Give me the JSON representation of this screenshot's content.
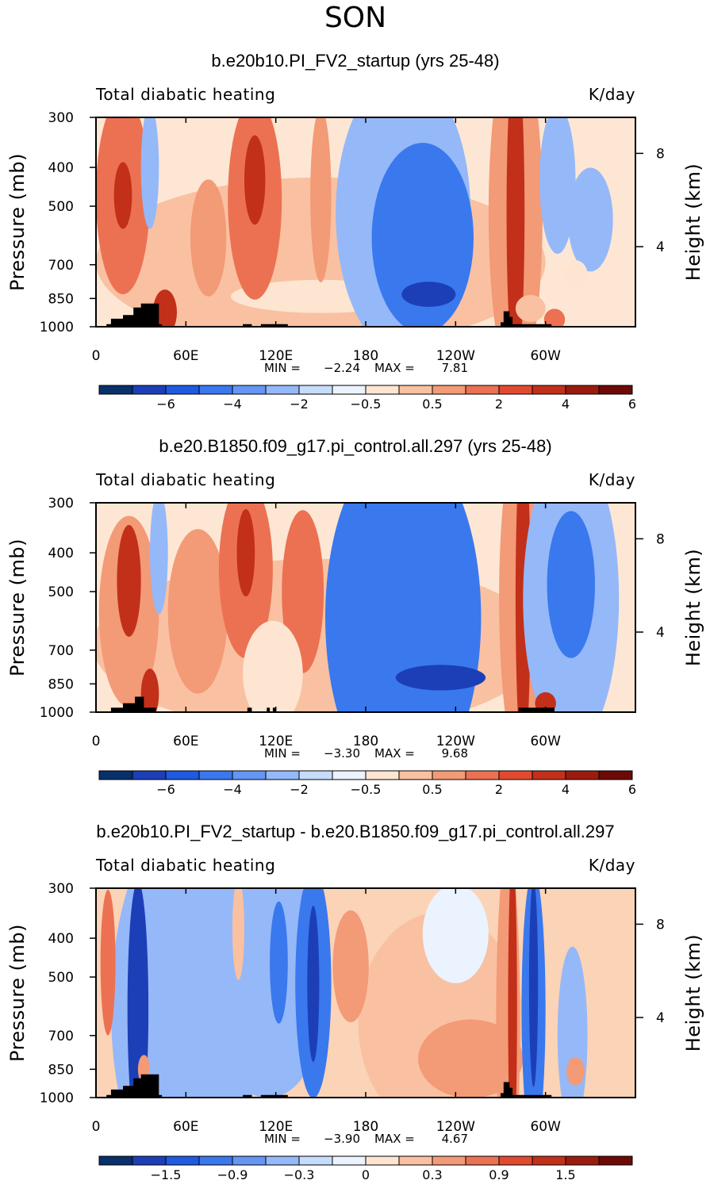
{
  "figure": {
    "season_title": "SON"
  },
  "chart_data": [
    {
      "type": "heatmap",
      "title": "b.e20b10.PI_FV2_startup (yrs 25-48)",
      "variable": "Total diabatic heating",
      "units": "K/day",
      "ylabel": "Pressure (mb)",
      "ylabel_right": "Height (km)",
      "xlabel": "",
      "x_ticks": [
        "0",
        "60E",
        "120E",
        "180",
        "120W",
        "60W"
      ],
      "y_ticks": [
        "300",
        "400",
        "500",
        "700",
        "850",
        "1000"
      ],
      "height_ticks": [
        "8",
        "4"
      ],
      "min_label": "MIN =",
      "min_value": "−2.24",
      "max_label": "MAX =",
      "max_value": "7.81",
      "colorbar_labels": [
        "−6",
        "−4",
        "−2",
        "−0.5",
        "0.5",
        "2",
        "4",
        "6"
      ],
      "colorbar_colors": [
        "#08306b",
        "#1c3fb8",
        "#1e5be0",
        "#3a78ee",
        "#6496f4",
        "#95b8f8",
        "#c6dcfc",
        "#eaf3fe",
        "#fde5d2",
        "#f9c1a1",
        "#f39a77",
        "#ec7152",
        "#e24a30",
        "#c2301a",
        "#9b1c0f",
        "#6e0a06"
      ],
      "bg": "#fde7d4",
      "blobs": [
        {
          "lon": 150,
          "p": 690,
          "rx": 150,
          "ry": 330,
          "v": 2
        },
        {
          "lon": 150,
          "p": 840,
          "rx": 60,
          "ry": 80,
          "v": 1
        },
        {
          "lon": 18,
          "p": 470,
          "rx": 18,
          "ry": 260,
          "v": 4
        },
        {
          "lon": 18,
          "p": 470,
          "rx": 6,
          "ry": 90,
          "v": 5
        },
        {
          "lon": 36,
          "p": 400,
          "rx": 6,
          "ry": 140,
          "v": -1
        },
        {
          "lon": 46,
          "p": 920,
          "rx": 8,
          "ry": 120,
          "v": 5
        },
        {
          "lon": 75,
          "p": 600,
          "rx": 12,
          "ry": 200,
          "v": 3
        },
        {
          "lon": 106,
          "p": 480,
          "rx": 18,
          "ry": 270,
          "v": 4
        },
        {
          "lon": 106,
          "p": 430,
          "rx": 7,
          "ry": 110,
          "v": 5
        },
        {
          "lon": 150,
          "p": 470,
          "rx": 7,
          "ry": 230,
          "v": 3
        },
        {
          "lon": 205,
          "p": 520,
          "rx": 45,
          "ry": 400,
          "v": -1
        },
        {
          "lon": 218,
          "p": 600,
          "rx": 34,
          "ry": 320,
          "v": -2
        },
        {
          "lon": 222,
          "p": 830,
          "rx": 18,
          "ry": 60,
          "v": -3
        },
        {
          "lon": 280,
          "p": 520,
          "rx": 18,
          "ry": 580,
          "v": 3
        },
        {
          "lon": 280,
          "p": 520,
          "rx": 6,
          "ry": 470,
          "v": 5
        },
        {
          "lon": 290,
          "p": 900,
          "rx": 10,
          "ry": 70,
          "v": 2
        },
        {
          "lon": 308,
          "p": 430,
          "rx": 12,
          "ry": 180,
          "v": -1
        },
        {
          "lon": 330,
          "p": 540,
          "rx": 15,
          "ry": 160,
          "v": -1
        },
        {
          "lon": 320,
          "p": 740,
          "rx": 8,
          "ry": 60,
          "v": 1
        },
        {
          "lon": 306,
          "p": 960,
          "rx": 7,
          "ry": 60,
          "v": 4
        }
      ],
      "topography": [
        [
          7,
          1000
        ],
        [
          7,
          985
        ],
        [
          10,
          985
        ],
        [
          10,
          955
        ],
        [
          18,
          955
        ],
        [
          18,
          935
        ],
        [
          25,
          935
        ],
        [
          25,
          895
        ],
        [
          30,
          895
        ],
        [
          30,
          875
        ],
        [
          42,
          875
        ],
        [
          42,
          985
        ],
        [
          44,
          985
        ],
        [
          44,
          1000
        ],
        [
          98,
          1000
        ],
        [
          98,
          985
        ],
        [
          104,
          985
        ],
        [
          104,
          1000
        ],
        [
          110,
          1000
        ],
        [
          110,
          985
        ],
        [
          128,
          985
        ],
        [
          128,
          1000
        ],
        [
          270,
          1000
        ],
        [
          270,
          975
        ],
        [
          272,
          975
        ],
        [
          272,
          915
        ],
        [
          276,
          915
        ],
        [
          276,
          945
        ],
        [
          278,
          945
        ],
        [
          278,
          985
        ],
        [
          304,
          985
        ],
        [
          304,
          1000
        ]
      ]
    },
    {
      "type": "heatmap",
      "title": "b.e20.B1850.f09_g17.pi_control.all.297 (yrs 25-48)",
      "variable": "Total diabatic heating",
      "units": "K/day",
      "ylabel": "Pressure (mb)",
      "ylabel_right": "Height (km)",
      "xlabel": "",
      "x_ticks": [
        "0",
        "60E",
        "120E",
        "180",
        "120W",
        "60W"
      ],
      "y_ticks": [
        "300",
        "400",
        "500",
        "700",
        "850",
        "1000"
      ],
      "height_ticks": [
        "8",
        "4"
      ],
      "min_label": "MIN =",
      "min_value": "−3.30",
      "max_label": "MAX =",
      "max_value": "9.68",
      "colorbar_labels": [
        "−6",
        "−4",
        "−2",
        "−0.5",
        "0.5",
        "2",
        "4",
        "6"
      ],
      "colorbar_colors": [
        "#08306b",
        "#1c3fb8",
        "#1e5be0",
        "#3a78ee",
        "#6496f4",
        "#95b8f8",
        "#c6dcfc",
        "#eaf3fe",
        "#fde5d2",
        "#f9c1a1",
        "#f39a77",
        "#ec7152",
        "#e24a30",
        "#c2301a",
        "#9b1c0f",
        "#6e0a06"
      ],
      "bg": "#fde7d4",
      "blobs": [
        {
          "lon": 148,
          "p": 680,
          "rx": 150,
          "ry": 330,
          "v": 2
        },
        {
          "lon": 22,
          "p": 560,
          "rx": 20,
          "ry": 300,
          "v": 3
        },
        {
          "lon": 22,
          "p": 470,
          "rx": 8,
          "ry": 150,
          "v": 5
        },
        {
          "lon": 42,
          "p": 400,
          "rx": 6,
          "ry": 140,
          "v": -1
        },
        {
          "lon": 36,
          "p": 900,
          "rx": 6,
          "ry": 130,
          "v": 5
        },
        {
          "lon": 68,
          "p": 560,
          "rx": 20,
          "ry": 260,
          "v": 3
        },
        {
          "lon": 100,
          "p": 440,
          "rx": 18,
          "ry": 220,
          "v": 4
        },
        {
          "lon": 100,
          "p": 400,
          "rx": 6,
          "ry": 100,
          "v": 5
        },
        {
          "lon": 138,
          "p": 500,
          "rx": 14,
          "ry": 230,
          "v": 4
        },
        {
          "lon": 118,
          "p": 800,
          "rx": 20,
          "ry": 240,
          "v": 1
        },
        {
          "lon": 205,
          "p": 580,
          "rx": 52,
          "ry": 540,
          "v": -2
        },
        {
          "lon": 230,
          "p": 820,
          "rx": 30,
          "ry": 60,
          "v": -3
        },
        {
          "lon": 285,
          "p": 520,
          "rx": 16,
          "ry": 580,
          "v": 3
        },
        {
          "lon": 285,
          "p": 520,
          "rx": 5,
          "ry": 470,
          "v": 5
        },
        {
          "lon": 317,
          "p": 520,
          "rx": 32,
          "ry": 420,
          "v": -1
        },
        {
          "lon": 317,
          "p": 480,
          "rx": 16,
          "ry": 200,
          "v": -2
        },
        {
          "lon": 300,
          "p": 950,
          "rx": 7,
          "ry": 60,
          "v": 5
        }
      ],
      "topography": [
        [
          10,
          1000
        ],
        [
          10,
          975
        ],
        [
          18,
          975
        ],
        [
          18,
          950
        ],
        [
          26,
          950
        ],
        [
          26,
          915
        ],
        [
          32,
          915
        ],
        [
          32,
          975
        ],
        [
          40,
          975
        ],
        [
          40,
          1000
        ],
        [
          101,
          1000
        ],
        [
          101,
          975
        ],
        [
          104,
          975
        ],
        [
          104,
          1000
        ],
        [
          114,
          1000
        ],
        [
          114,
          975
        ],
        [
          116,
          975
        ],
        [
          116,
          1000
        ],
        [
          118,
          1000
        ],
        [
          118,
          975
        ],
        [
          120,
          975
        ],
        [
          120,
          1000
        ],
        [
          282,
          1000
        ],
        [
          282,
          975
        ],
        [
          306,
          975
        ],
        [
          306,
          1000
        ]
      ]
    },
    {
      "type": "heatmap",
      "title": "b.e20b10.PI_FV2_startup - b.e20.B1850.f09_g17.pi_control.all.297",
      "variable": "Total diabatic heating",
      "units": "K/day",
      "ylabel": "Pressure (mb)",
      "ylabel_right": "Height (km)",
      "xlabel": "",
      "x_ticks": [
        "0",
        "60E",
        "120E",
        "180",
        "120W",
        "60W"
      ],
      "y_ticks": [
        "300",
        "400",
        "500",
        "700",
        "850",
        "1000"
      ],
      "height_ticks": [
        "8",
        "4"
      ],
      "min_label": "MIN =",
      "min_value": "−3.90",
      "max_label": "MAX =",
      "max_value": "4.67",
      "colorbar_labels": [
        "−1.5",
        "−0.9",
        "−0.3",
        "0",
        "0.3",
        "0.9",
        "1.5"
      ],
      "colorbar_colors": [
        "#08306b",
        "#1c3fb8",
        "#1e5be0",
        "#3a78ee",
        "#6496f4",
        "#95b8f8",
        "#c6dcfc",
        "#eaf3fe",
        "#fde5d2",
        "#f9c1a1",
        "#f39a77",
        "#ec7152",
        "#e24a30",
        "#c2301a",
        "#9b1c0f",
        "#6e0a06"
      ],
      "bg": "#fbd3b6",
      "blobs": [
        {
          "lon": 60,
          "p": 600,
          "rx": 50,
          "ry": 600,
          "v": -1
        },
        {
          "lon": 115,
          "p": 520,
          "rx": 40,
          "ry": 330,
          "v": -1
        },
        {
          "lon": 145,
          "p": 520,
          "rx": 12,
          "ry": 330,
          "v": -2
        },
        {
          "lon": 145,
          "p": 520,
          "rx": 4,
          "ry": 230,
          "v": -3
        },
        {
          "lon": 122,
          "p": 460,
          "rx": 6,
          "ry": 160,
          "v": -2
        },
        {
          "lon": 8,
          "p": 460,
          "rx": 5,
          "ry": 190,
          "v": 4
        },
        {
          "lon": 28,
          "p": 600,
          "rx": 7,
          "ry": 420,
          "v": -3
        },
        {
          "lon": 32,
          "p": 850,
          "rx": 4,
          "ry": 70,
          "v": 3
        },
        {
          "lon": 95,
          "p": 380,
          "rx": 4,
          "ry": 110,
          "v": 2
        },
        {
          "lon": 230,
          "p": 650,
          "rx": 55,
          "ry": 400,
          "v": 2
        },
        {
          "lon": 250,
          "p": 800,
          "rx": 35,
          "ry": 180,
          "v": 3
        },
        {
          "lon": 170,
          "p": 470,
          "rx": 12,
          "ry": 150,
          "v": 3
        },
        {
          "lon": 240,
          "p": 390,
          "rx": 22,
          "ry": 110,
          "v": 0
        },
        {
          "lon": 275,
          "p": 650,
          "rx": 8,
          "ry": 600,
          "v": 3
        },
        {
          "lon": 278,
          "p": 600,
          "rx": 3,
          "ry": 500,
          "v": 5
        },
        {
          "lon": 292,
          "p": 600,
          "rx": 8,
          "ry": 450,
          "v": -2
        },
        {
          "lon": 292,
          "p": 520,
          "rx": 3,
          "ry": 300,
          "v": -3
        },
        {
          "lon": 318,
          "p": 700,
          "rx": 10,
          "ry": 350,
          "v": -1
        },
        {
          "lon": 320,
          "p": 860,
          "rx": 6,
          "ry": 70,
          "v": 3
        }
      ],
      "topography": [
        [
          7,
          1000
        ],
        [
          7,
          985
        ],
        [
          10,
          985
        ],
        [
          10,
          955
        ],
        [
          18,
          955
        ],
        [
          18,
          935
        ],
        [
          25,
          935
        ],
        [
          25,
          895
        ],
        [
          30,
          895
        ],
        [
          30,
          875
        ],
        [
          42,
          875
        ],
        [
          42,
          985
        ],
        [
          44,
          985
        ],
        [
          44,
          1000
        ],
        [
          98,
          1000
        ],
        [
          98,
          985
        ],
        [
          104,
          985
        ],
        [
          104,
          1000
        ],
        [
          110,
          1000
        ],
        [
          110,
          985
        ],
        [
          128,
          985
        ],
        [
          128,
          1000
        ],
        [
          270,
          1000
        ],
        [
          270,
          975
        ],
        [
          272,
          975
        ],
        [
          272,
          915
        ],
        [
          276,
          915
        ],
        [
          276,
          945
        ],
        [
          278,
          945
        ],
        [
          278,
          985
        ],
        [
          304,
          985
        ],
        [
          304,
          1000
        ]
      ]
    }
  ]
}
